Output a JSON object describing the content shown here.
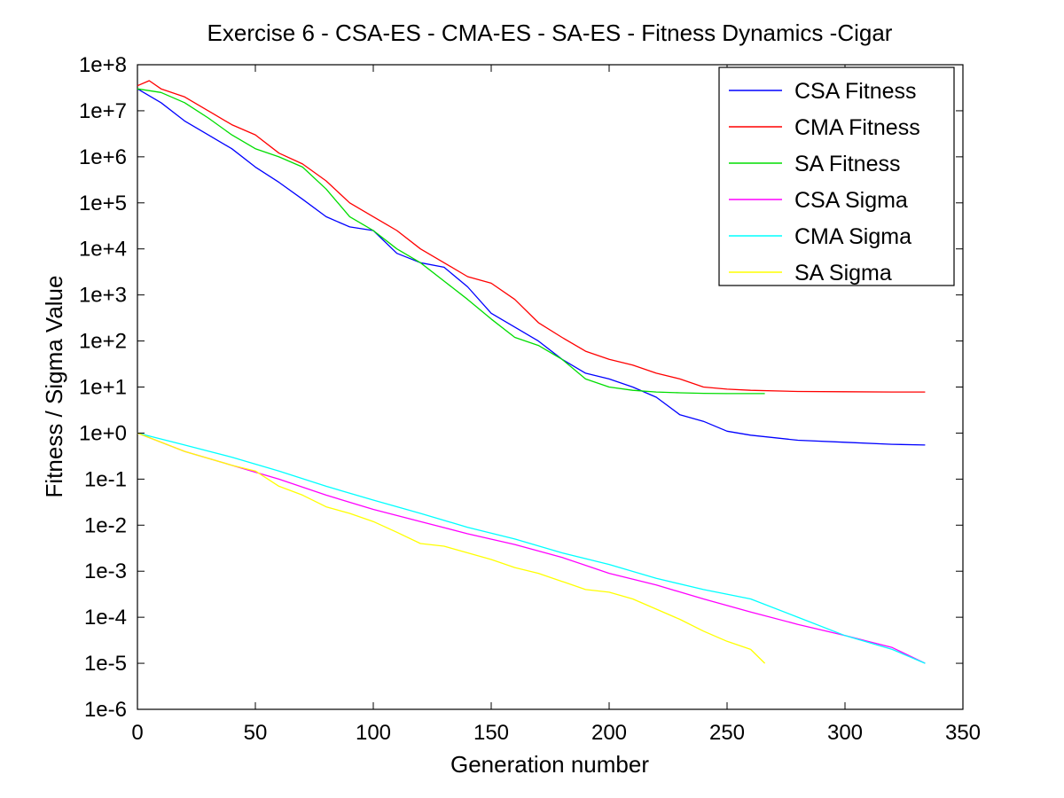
{
  "chart_data": {
    "type": "line",
    "title": "Exercise 6 - CSA-ES - CMA-ES - SA-ES - Fitness Dynamics -Cigar",
    "xlabel": "Generation number",
    "ylabel": "Fitness / Sigma Value",
    "xlim": [
      0,
      350
    ],
    "ylim": [
      1e-06,
      100000000.0
    ],
    "yscale": "log",
    "grid": false,
    "legend_position": "top-right",
    "xticks": [
      0,
      50,
      100,
      150,
      200,
      250,
      300,
      350
    ],
    "xtick_labels": [
      "0",
      "50",
      "100",
      "150",
      "200",
      "250",
      "300",
      "350"
    ],
    "yticks": [
      1e-06,
      1e-05,
      0.0001,
      0.001,
      0.01,
      0.1,
      1,
      10,
      100,
      1000,
      10000,
      100000,
      1000000,
      10000000,
      100000000
    ],
    "ytick_labels": [
      "1e-6",
      "1e-5",
      "1e-4",
      "1e-3",
      "1e-2",
      "1e-1",
      "1e+0",
      "1e+1",
      "1e+2",
      "1e+3",
      "1e+4",
      "1e+5",
      "1e+6",
      "1e+7",
      "1e+8"
    ],
    "series": [
      {
        "name": "CSA Fitness",
        "color": "#0000ff",
        "x": [
          0,
          10,
          20,
          30,
          40,
          50,
          60,
          70,
          80,
          90,
          100,
          110,
          120,
          130,
          140,
          150,
          160,
          170,
          180,
          190,
          200,
          210,
          220,
          230,
          240,
          250,
          260,
          280,
          300,
          320,
          334
        ],
        "y": [
          30000000,
          15000000,
          6000000,
          3000000,
          1500000,
          600000,
          280000,
          120000,
          50000,
          30000,
          25000,
          8000,
          5000,
          4000,
          1500,
          400,
          200,
          100,
          40,
          20,
          15,
          10,
          6,
          2.5,
          1.8,
          1.1,
          0.9,
          0.7,
          0.63,
          0.57,
          0.55
        ]
      },
      {
        "name": "CMA Fitness",
        "color": "#ff0000",
        "x": [
          0,
          5,
          10,
          20,
          30,
          40,
          50,
          60,
          70,
          80,
          90,
          100,
          110,
          120,
          130,
          140,
          150,
          160,
          170,
          180,
          190,
          200,
          210,
          220,
          230,
          240,
          250,
          260,
          280,
          300,
          320,
          334
        ],
        "y": [
          35000000,
          45000000,
          30000000,
          20000000,
          10000000,
          5000000,
          3000000,
          1200000,
          700000,
          300000,
          100000,
          50000,
          25000,
          10000,
          5000,
          2500,
          1800,
          800,
          250,
          120,
          60,
          40,
          30,
          20,
          15,
          10,
          9,
          8.5,
          8,
          7.9,
          7.8,
          7.8
        ]
      },
      {
        "name": "SA Fitness",
        "color": "#00dd00",
        "x": [
          0,
          10,
          20,
          30,
          40,
          50,
          60,
          70,
          80,
          90,
          100,
          110,
          120,
          130,
          140,
          150,
          160,
          170,
          180,
          190,
          200,
          210,
          220,
          230,
          240,
          250,
          266
        ],
        "y": [
          30000000,
          25000000,
          15000000,
          7000000,
          3000000,
          1500000,
          1000000,
          600000,
          200000,
          50000,
          25000,
          10000,
          5000,
          2000,
          800,
          300,
          120,
          80,
          40,
          15,
          10,
          8.5,
          7.8,
          7.5,
          7.3,
          7.2,
          7.2
        ]
      },
      {
        "name": "CSA Sigma",
        "color": "#ff00ff",
        "x": [
          0,
          20,
          40,
          60,
          80,
          100,
          120,
          140,
          160,
          180,
          200,
          220,
          240,
          260,
          280,
          300,
          320,
          334
        ],
        "y": [
          1.0,
          0.4,
          0.2,
          0.1,
          0.045,
          0.022,
          0.012,
          0.0065,
          0.0038,
          0.002,
          0.0009,
          0.0005,
          0.00025,
          0.00013,
          7e-05,
          4e-05,
          2.2e-05,
          1e-05
        ]
      },
      {
        "name": "CMA Sigma",
        "color": "#00ffff",
        "x": [
          0,
          20,
          40,
          60,
          80,
          100,
          120,
          140,
          160,
          180,
          200,
          220,
          240,
          260,
          280,
          300,
          320,
          334
        ],
        "y": [
          1.0,
          0.55,
          0.3,
          0.15,
          0.07,
          0.035,
          0.018,
          0.009,
          0.005,
          0.0025,
          0.0014,
          0.0007,
          0.0004,
          0.00025,
          0.0001,
          4e-05,
          2e-05,
          1e-05
        ]
      },
      {
        "name": "SA Sigma",
        "color": "#ffff00",
        "x": [
          0,
          20,
          40,
          50,
          60,
          70,
          80,
          90,
          100,
          110,
          120,
          130,
          140,
          150,
          160,
          170,
          180,
          190,
          200,
          210,
          220,
          230,
          240,
          250,
          260,
          266
        ],
        "y": [
          1.0,
          0.4,
          0.2,
          0.15,
          0.07,
          0.045,
          0.025,
          0.018,
          0.012,
          0.007,
          0.004,
          0.0035,
          0.0025,
          0.0018,
          0.0012,
          0.0009,
          0.0006,
          0.0004,
          0.00035,
          0.00025,
          0.00015,
          9e-05,
          5e-05,
          3e-05,
          2e-05,
          1e-05
        ]
      }
    ]
  }
}
